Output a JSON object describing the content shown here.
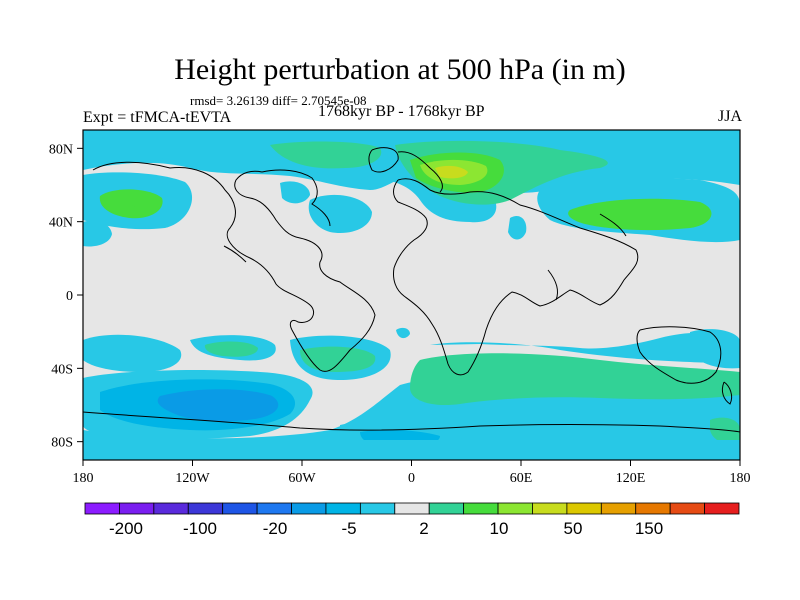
{
  "title": "Height perturbation at 500 hPa (in m)",
  "stats": "rmsd= 3.26139 diff= 2.70545e-08",
  "left_label": "Expt = tFMCA-tEVTA",
  "center_label": "1768kyr BP - 1768kyr BP",
  "right_label": "JJA",
  "chart_data": {
    "type": "filled-contour-map",
    "projection": "cylindrical-equidistant",
    "lon_range": [
      -180,
      180
    ],
    "lat_range": [
      -90,
      90
    ],
    "x_tick_labels": [
      "180",
      "120W",
      "60W",
      "0",
      "60E",
      "120E",
      "180"
    ],
    "y_tick_labels": [
      "80N",
      "40N",
      "0",
      "40S",
      "80S"
    ],
    "colorbar": {
      "levels_labeled": [
        "-200",
        "-100",
        "-20",
        "-5",
        "2",
        "10",
        "50",
        "150"
      ],
      "colors": [
        "#8c1cff",
        "#7a1ef0",
        "#5a2adc",
        "#3c37d8",
        "#1e55e6",
        "#1e78f0",
        "#0a9be6",
        "#00b4e6",
        "#28c8e6",
        "#e6e6e6",
        "#32d296",
        "#46dc3c",
        "#8ce632",
        "#c8dc1e",
        "#dcc800",
        "#e6a000",
        "#e67800",
        "#e64b14",
        "#e61e1e"
      ]
    }
  },
  "colors": {
    "neutral": "#e6e6e6",
    "light_blue": "#28c8e6",
    "mid_blue": "#00b4e6",
    "blue": "#0a9be6",
    "dark_blue": "#1e78f0",
    "teal_green": "#32d296",
    "green": "#46dc3c",
    "yellow_green": "#8ce632",
    "olive": "#c8dc1e"
  }
}
